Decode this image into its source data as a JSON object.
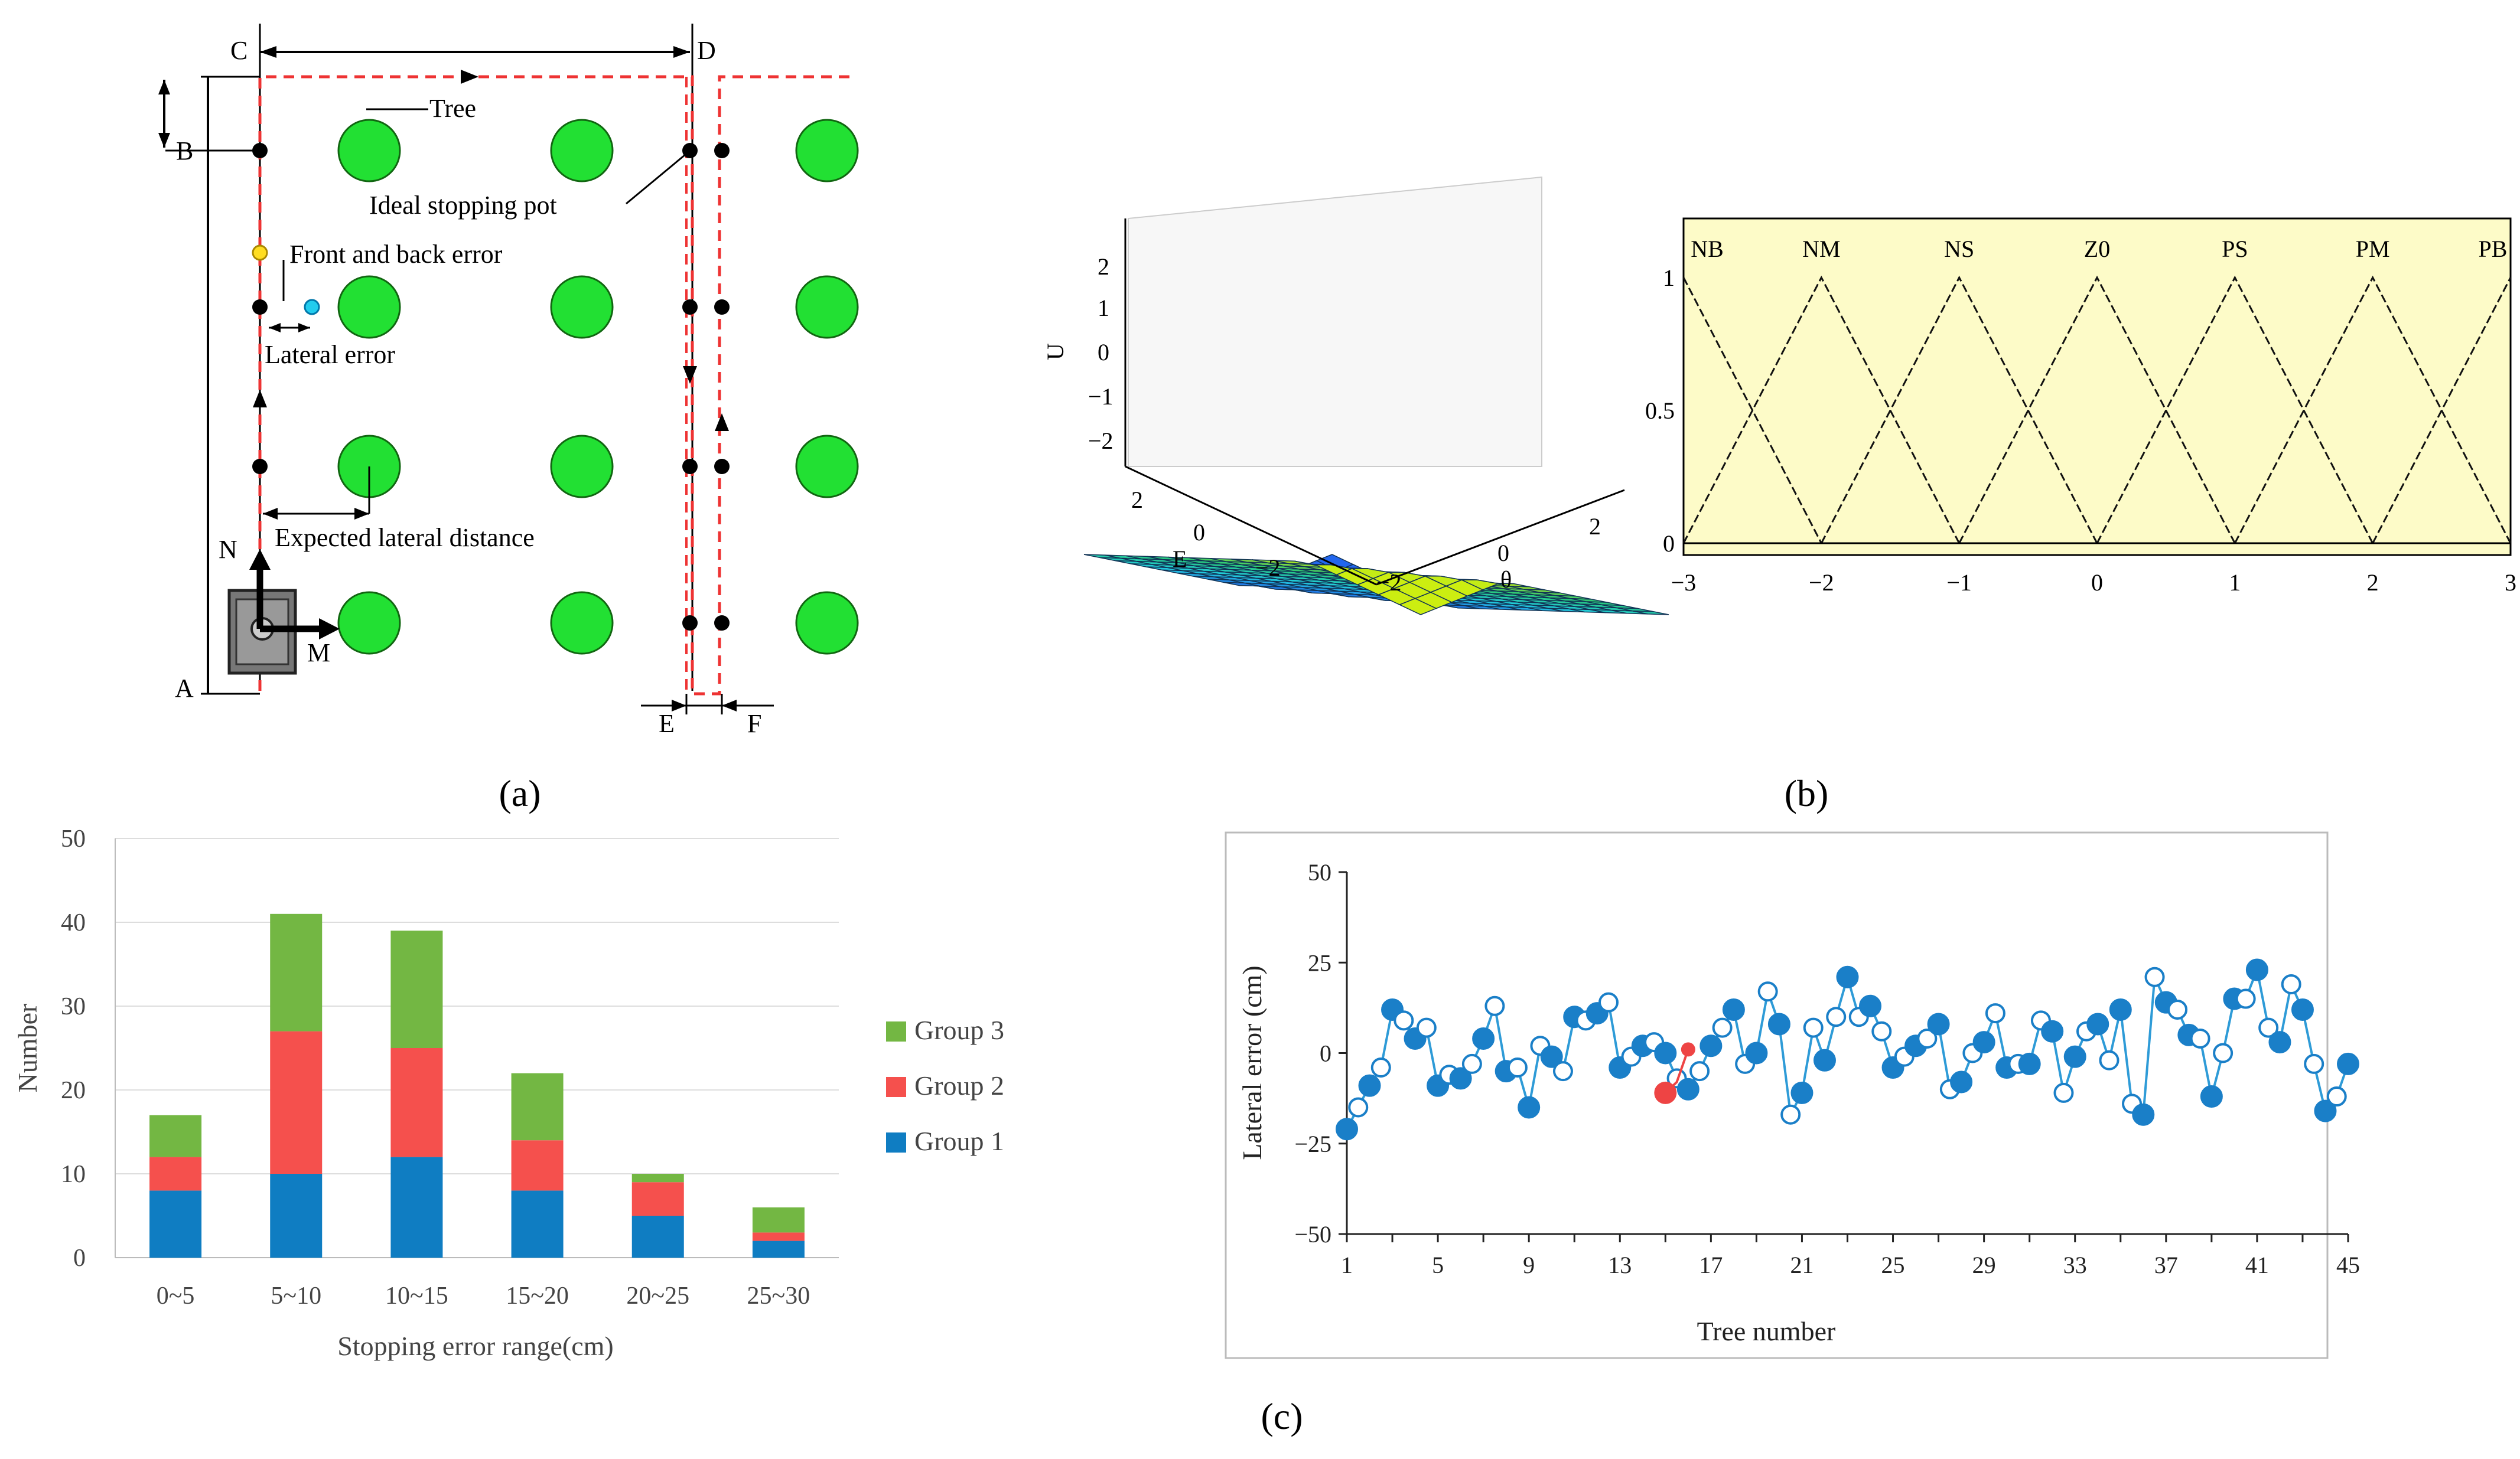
{
  "panel_labels": {
    "a": "(a)",
    "b": "(b)",
    "c": "(c)"
  },
  "colors": {
    "tree": "#22e033",
    "path": "#ee3333",
    "surface_top": "#ccee11",
    "surface_mid": "#22cccc",
    "surface_low": "#2266ee",
    "membership_bg": "#fdfbc8",
    "group1": "#0f7dc2",
    "group2": "#f5504d",
    "group3": "#73b743",
    "lateral_line": "#2e9bd7",
    "lateral_marker": "#1a7fc8",
    "outlier": "#ee4444"
  },
  "diagram": {
    "points": {
      "A": "A",
      "B": "B",
      "C": "C",
      "D": "D",
      "E": "E",
      "F": "F",
      "N": "N",
      "M": "M"
    },
    "labels": {
      "tree": "Tree",
      "ideal_stop": "Ideal stopping pot",
      "front_back": "Front and back error",
      "lateral": "Lateral error",
      "expected": "Expected lateral distance"
    }
  },
  "surface": {
    "z_label": "U",
    "x_label": "θ",
    "y_label": "E",
    "z_ticks": [
      "2",
      "1",
      "0",
      "−1",
      "−2"
    ],
    "y_ticks": [
      "2",
      "0",
      "−2"
    ],
    "x_ticks": [
      "−2",
      "0",
      "2"
    ]
  },
  "membership": {
    "sets": [
      "NB",
      "NM",
      "NS",
      "Z0",
      "PS",
      "PM",
      "PB"
    ],
    "centers": [
      -3,
      -2,
      -1,
      0,
      1,
      2,
      3
    ],
    "x_ticks": [
      "−3",
      "−2",
      "−1",
      "0",
      "1",
      "2",
      "3"
    ],
    "y_ticks": [
      "1",
      "0.5",
      "0"
    ],
    "y_tick_values": [
      1,
      0.5,
      0
    ]
  },
  "chart_data": [
    {
      "type": "bar",
      "stacked": true,
      "title": "",
      "xlabel": "Stopping error range(cm)",
      "ylabel": "Number",
      "ylim": [
        0,
        50
      ],
      "yticks": [
        0,
        10,
        20,
        30,
        40,
        50
      ],
      "categories": [
        "0~5",
        "5~10",
        "10~15",
        "15~20",
        "20~25",
        "25~30"
      ],
      "series": [
        {
          "name": "Group 1",
          "values": [
            8,
            10,
            12,
            8,
            5,
            2
          ]
        },
        {
          "name": "Group 2",
          "values": [
            4,
            17,
            13,
            6,
            4,
            1
          ]
        },
        {
          "name": "Group 3",
          "values": [
            5,
            14,
            14,
            8,
            1,
            3
          ]
        }
      ],
      "legend": [
        "Group 3",
        "Group 2",
        "Group 1"
      ]
    },
    {
      "type": "line",
      "title": "",
      "xlabel": "Tree number",
      "ylabel": "Lateral error (cm)",
      "ylim": [
        -50,
        50
      ],
      "yticks": [
        50,
        25,
        0,
        -25,
        -50
      ],
      "xticks": [
        1,
        5,
        9,
        13,
        17,
        21,
        25,
        29,
        33,
        37,
        41,
        45
      ],
      "series": [
        {
          "name": "Lateral error",
          "x": [
            1,
            1.5,
            2,
            2.5,
            3,
            3.5,
            4,
            4.5,
            5,
            5.5,
            6,
            6.5,
            7,
            7.5,
            8,
            8.5,
            9,
            9.5,
            10,
            10.5,
            11,
            11.5,
            12,
            12.5,
            13,
            13.5,
            14,
            14.5,
            15,
            15.5,
            16,
            16.5,
            17,
            17.5,
            18,
            18.5,
            19,
            19.5,
            20,
            20.5,
            21,
            21.5,
            22,
            22.5,
            23,
            23.5,
            24,
            24.5,
            25,
            25.5,
            26,
            26.5,
            27,
            27.5,
            28,
            28.5,
            29,
            29.5,
            30,
            30.5,
            31,
            31.5,
            32,
            32.5,
            33,
            33.5,
            34,
            34.5,
            35,
            35.5,
            36,
            36.5,
            37,
            37.5,
            38,
            38.5,
            39,
            39.5,
            40,
            40.5,
            41,
            41.5,
            42,
            42.5,
            43,
            43.5,
            44,
            44.5,
            45
          ],
          "y": [
            -21,
            -15,
            -9,
            -4,
            12,
            9,
            4,
            7,
            -9,
            -6,
            -7,
            -3,
            4,
            13,
            -5,
            -4,
            -15,
            2,
            -1,
            -5,
            10,
            9,
            11,
            14,
            -4,
            -1,
            2,
            3,
            0,
            -7,
            -10,
            -5,
            2,
            7,
            12,
            -3,
            0,
            17,
            8,
            -17,
            -11,
            7,
            -2,
            10,
            21,
            10,
            13,
            6,
            -4,
            -1,
            2,
            4,
            8,
            -10,
            -8,
            0,
            3,
            11,
            -4,
            -3,
            -3,
            9,
            6,
            -11,
            -1,
            6,
            8,
            -2,
            12,
            -14,
            -17,
            21,
            14,
            12,
            5,
            4,
            -12,
            0,
            15,
            15,
            23,
            7,
            3,
            19,
            12,
            -3,
            -16,
            -12,
            -3
          ],
          "markers": [
            "filled",
            "open",
            "filled",
            "open",
            "filled",
            "open",
            "filled",
            "open",
            "filled",
            "open",
            "filled",
            "open",
            "filled",
            "open",
            "filled",
            "open",
            "filled",
            "open",
            "filled",
            "open",
            "filled",
            "open",
            "filled",
            "open",
            "filled",
            "open",
            "filled",
            "open",
            "filled",
            "open",
            "filled",
            "open",
            "filled",
            "open",
            "filled",
            "open",
            "filled",
            "open",
            "filled",
            "open",
            "filled",
            "open",
            "filled",
            "open",
            "filled",
            "open",
            "filled",
            "open",
            "filled",
            "open",
            "filled",
            "open",
            "filled",
            "open",
            "filled",
            "open",
            "filled",
            "open",
            "filled",
            "open",
            "filled",
            "open",
            "filled",
            "open",
            "filled",
            "open",
            "filled",
            "open",
            "filled",
            "open",
            "filled",
            "open",
            "filled",
            "open",
            "filled",
            "open",
            "filled",
            "open",
            "filled",
            "open",
            "filled",
            "open",
            "filled",
            "open",
            "filled",
            "open",
            "filled",
            "open",
            "filled"
          ]
        },
        {
          "name": "Outlier",
          "x": [
            15,
            15.5,
            16
          ],
          "y": [
            -11,
            -8,
            1
          ]
        }
      ]
    }
  ]
}
